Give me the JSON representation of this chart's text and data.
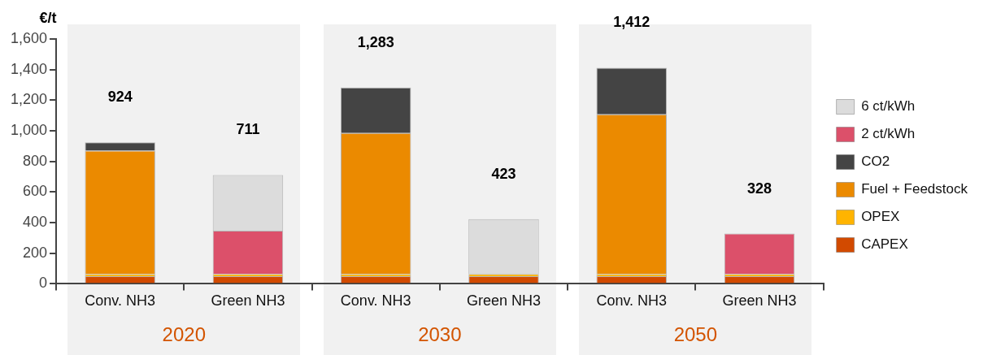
{
  "chart_data": {
    "type": "bar",
    "ylabel": "€/t",
    "stacked": true,
    "categories": [
      "Conv. NH3",
      "Green NH3",
      "Conv. NH3",
      "Green NH3",
      "Conv. NH3",
      "Green NH3"
    ],
    "series": [
      {
        "name": "CAPEX",
        "color": "#d24a00",
        "values": [
          50,
          50,
          50,
          50,
          50,
          50
        ]
      },
      {
        "name": "OPEX",
        "color": "#ffb400",
        "values": [
          15,
          15,
          15,
          15,
          15,
          15
        ]
      },
      {
        "name": "Fuel + Feedstock",
        "color": "#eb8a00",
        "values": [
          805,
          null,
          920,
          null,
          1043,
          null
        ]
      },
      {
        "name": "CO2",
        "color": "#444444",
        "values": [
          54,
          null,
          298,
          null,
          304,
          null
        ]
      },
      {
        "name": "2 ct/kWh",
        "color": "#dc506a",
        "values": [
          null,
          282,
          null,
          null,
          null,
          263
        ]
      },
      {
        "name": "6 ct/kWh",
        "color": "#dcdcdc",
        "values": [
          null,
          364,
          null,
          358,
          null,
          null
        ]
      }
    ],
    "totals": [
      "924",
      "711",
      "1,283",
      "423",
      "1,412",
      "328"
    ],
    "annotations": [
      "2020",
      "2030",
      "2050"
    ],
    "ylim": [
      0,
      1600
    ],
    "yticks": [
      {
        "value": 0,
        "label": "0"
      },
      {
        "value": 200,
        "label": "200"
      },
      {
        "value": 400,
        "label": "400"
      },
      {
        "value": 600,
        "label": "600"
      },
      {
        "value": 800,
        "label": "800"
      },
      {
        "value": 1000,
        "label": "1,000"
      },
      {
        "value": 1200,
        "label": "1,200"
      },
      {
        "value": 1400,
        "label": "1,400"
      },
      {
        "value": 1600,
        "label": "1,600"
      }
    ],
    "grid": false,
    "legend": "right"
  }
}
